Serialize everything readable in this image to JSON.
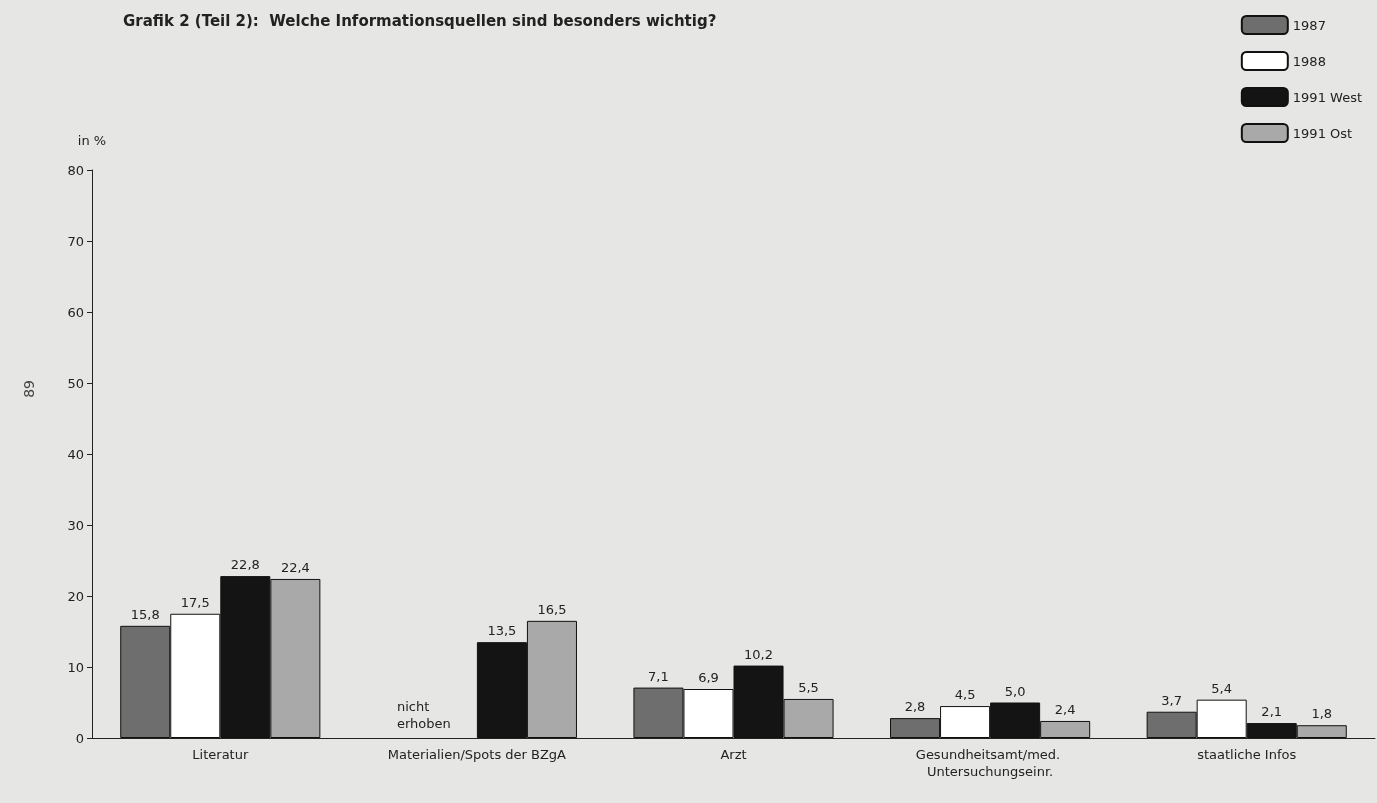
{
  "chart_data": {
    "type": "bar",
    "title": "Grafik 2 (Teil 2):  Welche Informationsquellen sind besonders wichtig?",
    "ylabel": "in %",
    "categories": [
      "Literatur",
      "Materialien/Spots der BZgA",
      "Arzt",
      "Gesundheitsamt/med. Untersuchungseinr.",
      "staatliche Infos"
    ],
    "series": [
      {
        "name": "1987",
        "color": "#6e6e6e",
        "values": [
          15.8,
          null,
          7.1,
          2.8,
          3.7
        ],
        "value_labels": [
          "15,8",
          null,
          "7,1",
          "2,8",
          "3,7"
        ]
      },
      {
        "name": "1988",
        "color": "#ffffff",
        "values": [
          17.5,
          null,
          6.9,
          4.5,
          5.4
        ],
        "value_labels": [
          "17,5",
          null,
          "6,9",
          "4,5",
          "5,4"
        ]
      },
      {
        "name": "1991 West",
        "color": "#141414",
        "values": [
          22.8,
          13.5,
          10.2,
          5.0,
          2.1
        ],
        "value_labels": [
          "22,8",
          "13,5",
          "10,2",
          "5,0",
          "2,1"
        ]
      },
      {
        "name": "1991 Ost",
        "color": "#a9a9a9",
        "values": [
          22.4,
          16.5,
          5.5,
          2.4,
          1.8
        ],
        "value_labels": [
          "22,4",
          "16,5",
          "5,5",
          "2,4",
          "1,8"
        ]
      }
    ],
    "ylim": [
      0,
      80
    ],
    "yticks": [
      0,
      10,
      20,
      30,
      40,
      50,
      60,
      70,
      80
    ],
    "grid": false,
    "legend": "top right",
    "annotations": [
      {
        "text": "nicht erhoben",
        "x": "Materialien/Spots der BZgA",
        "y": 0
      },
      "89"
    ]
  }
}
